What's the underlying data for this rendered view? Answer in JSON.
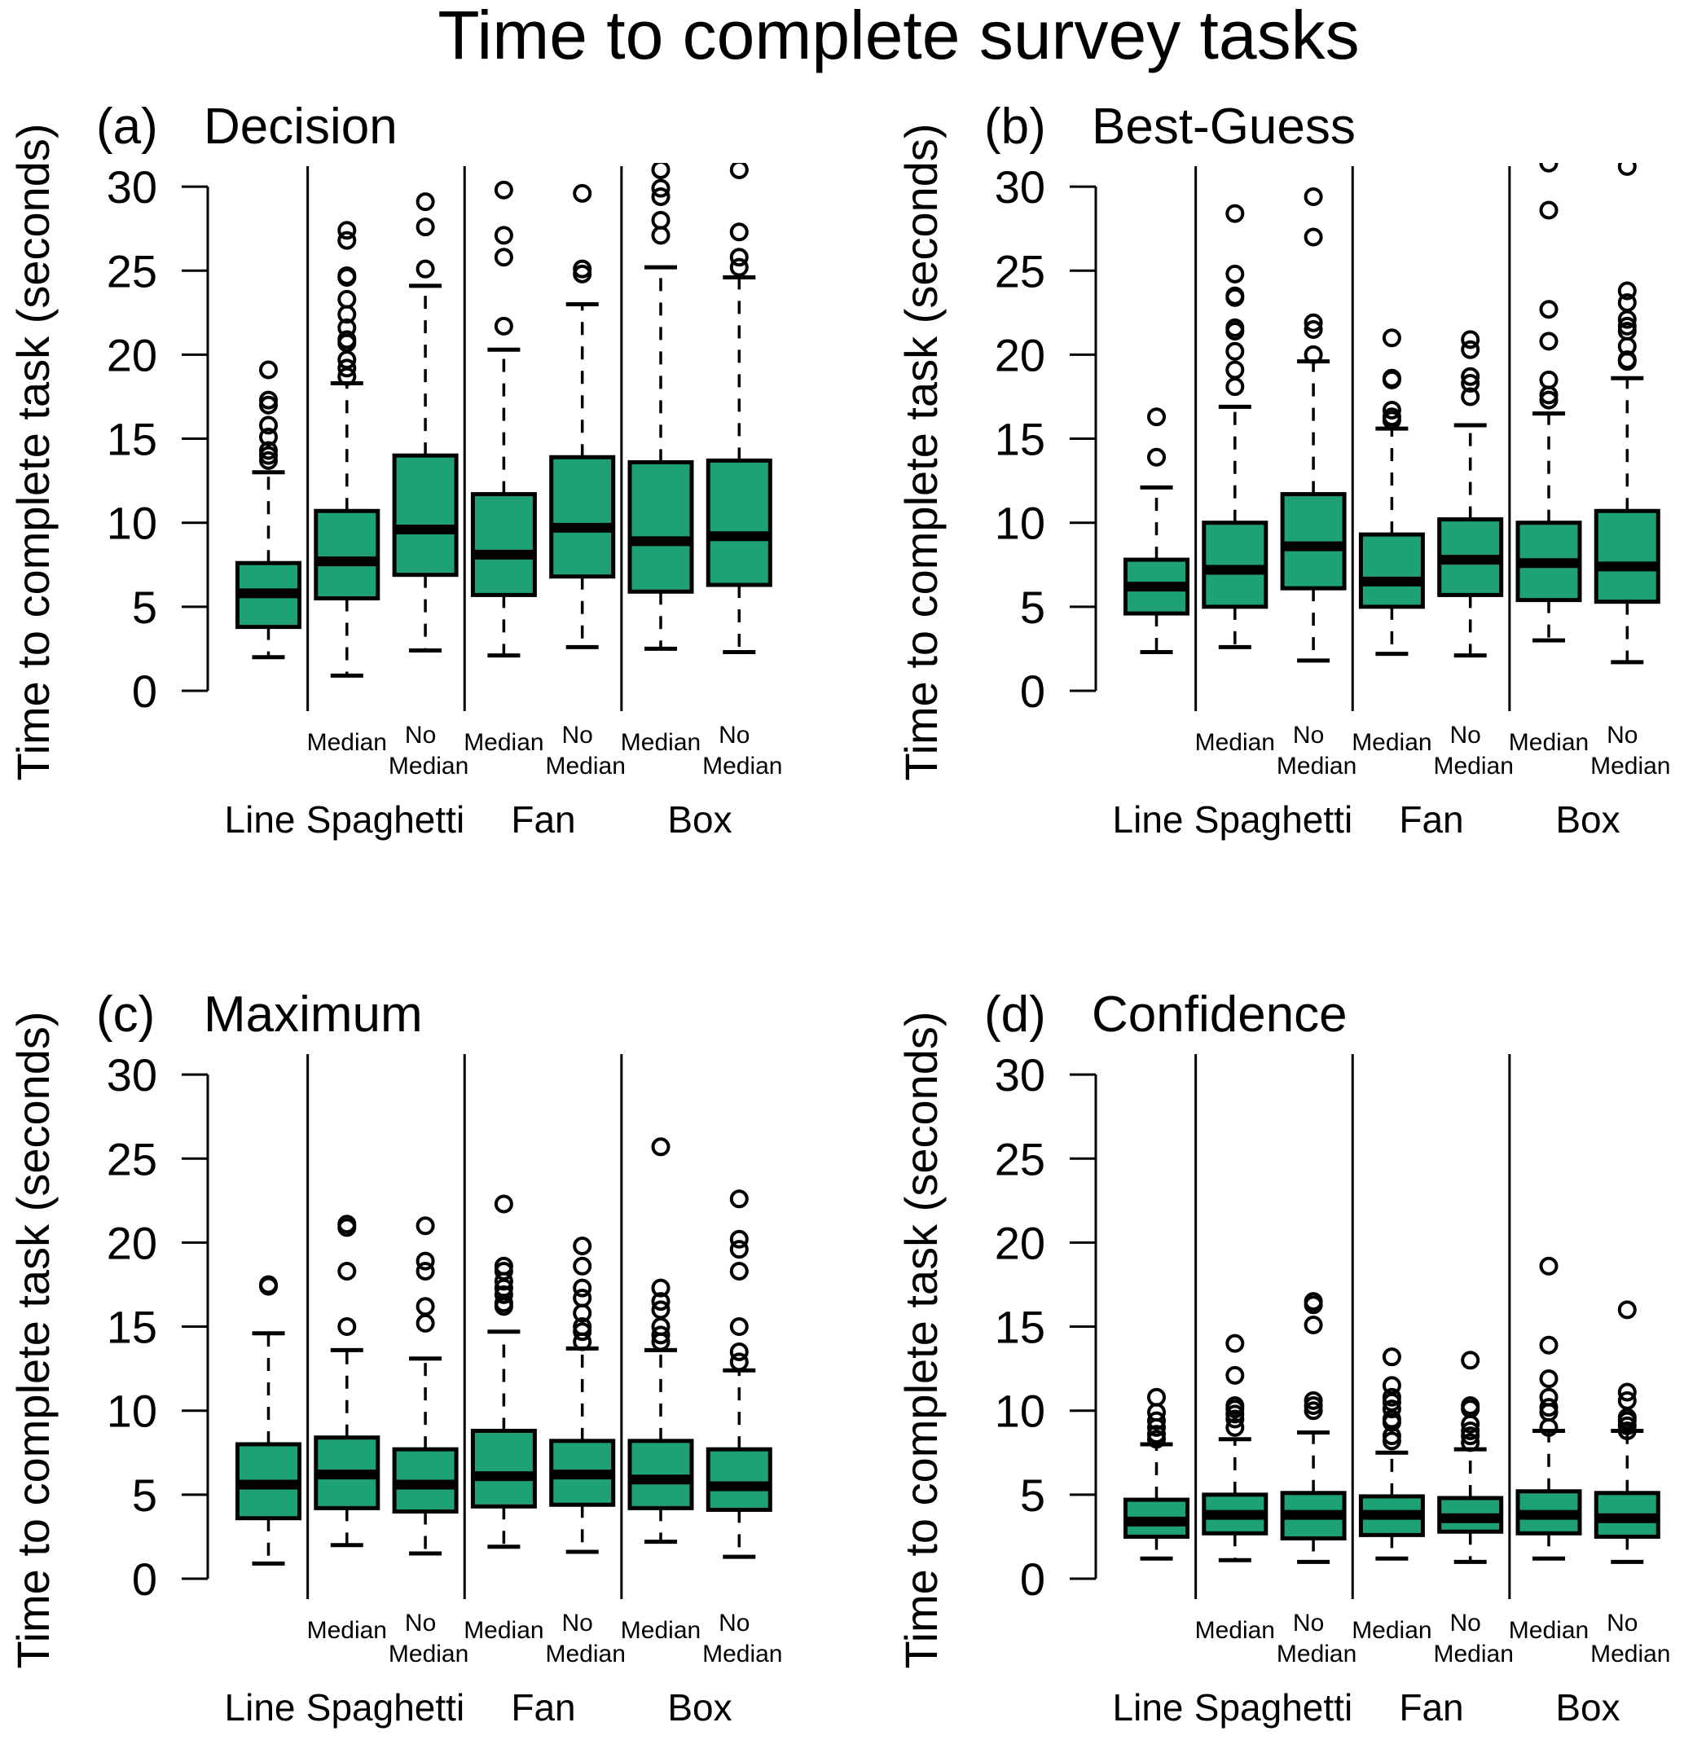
{
  "chart_data": {
    "type": "boxplot",
    "title": "Time to complete survey tasks",
    "ylabel": "Time to complete task (seconds)",
    "ylim": [
      0,
      30
    ],
    "yticks": [
      0,
      5,
      10,
      15,
      20,
      25,
      30
    ],
    "box_color": "#1fa178",
    "categories": [
      "Line",
      "Spaghetti",
      "Fan",
      "Box"
    ],
    "series_labels": [
      {
        "group": "Line",
        "sub": ""
      },
      {
        "group": "Spaghetti",
        "sub": "Median"
      },
      {
        "group": "Spaghetti",
        "sub": "No Median"
      },
      {
        "group": "Fan",
        "sub": "Median"
      },
      {
        "group": "Fan",
        "sub": "No Median"
      },
      {
        "group": "Box",
        "sub": "Median"
      },
      {
        "group": "Box",
        "sub": "No Median"
      }
    ],
    "sub_label_lines": {
      "Median": [
        "Median"
      ],
      "No Median": [
        "No",
        "Median"
      ]
    },
    "panels": [
      {
        "tag": "(a)",
        "title": "Decision",
        "boxes": [
          {
            "low": 2.0,
            "q1": 3.8,
            "median": 5.8,
            "q3": 7.6,
            "high": 13.0,
            "outliers": [
              13.7,
              14.0,
              14.3,
              15.1,
              15.8,
              17.0,
              17.3,
              19.1
            ]
          },
          {
            "low": 0.9,
            "q1": 5.5,
            "median": 7.7,
            "q3": 10.7,
            "high": 18.3,
            "outliers": [
              18.7,
              19.2,
              19.7,
              20.7,
              20.9,
              21.6,
              22.4,
              23.3,
              24.6,
              24.7,
              26.8,
              27.4
            ]
          },
          {
            "low": 2.4,
            "q1": 6.9,
            "median": 9.6,
            "q3": 14.0,
            "high": 24.1,
            "outliers": [
              25.1,
              27.6,
              29.1
            ]
          },
          {
            "low": 2.1,
            "q1": 5.7,
            "median": 8.1,
            "q3": 11.7,
            "high": 20.3,
            "outliers": [
              21.7,
              25.8,
              27.1,
              29.8
            ]
          },
          {
            "low": 2.6,
            "q1": 6.8,
            "median": 9.7,
            "q3": 13.9,
            "high": 23.0,
            "outliers": [
              24.8,
              25.1,
              29.6
            ]
          },
          {
            "low": 2.5,
            "q1": 5.9,
            "median": 8.9,
            "q3": 13.6,
            "high": 25.2,
            "outliers": [
              27.1,
              28.0,
              29.4,
              29.9,
              31.0
            ]
          },
          {
            "low": 2.3,
            "q1": 6.3,
            "median": 9.2,
            "q3": 13.7,
            "high": 24.6,
            "outliers": [
              25.2,
              25.8,
              27.3,
              31.0
            ]
          }
        ]
      },
      {
        "tag": "(b)",
        "title": "Best-Guess",
        "boxes": [
          {
            "low": 2.3,
            "q1": 4.6,
            "median": 6.2,
            "q3": 7.8,
            "high": 12.1,
            "outliers": [
              13.9,
              16.3
            ]
          },
          {
            "low": 2.6,
            "q1": 5.0,
            "median": 7.2,
            "q3": 10.0,
            "high": 16.9,
            "outliers": [
              18.1,
              19.1,
              20.2,
              21.4,
              21.6,
              23.4,
              23.5,
              24.8,
              28.4
            ]
          },
          {
            "low": 1.8,
            "q1": 6.1,
            "median": 8.6,
            "q3": 11.7,
            "high": 19.6,
            "outliers": [
              20.0,
              21.5,
              21.9,
              27.0,
              29.4
            ]
          },
          {
            "low": 2.2,
            "q1": 5.0,
            "median": 6.5,
            "q3": 9.3,
            "high": 15.6,
            "outliers": [
              16.1,
              16.3,
              16.7,
              18.5,
              18.6,
              21.0
            ]
          },
          {
            "low": 2.1,
            "q1": 5.7,
            "median": 7.8,
            "q3": 10.2,
            "high": 15.8,
            "outliers": [
              17.5,
              18.3,
              18.7,
              20.3,
              20.9
            ]
          },
          {
            "low": 3.0,
            "q1": 5.4,
            "median": 7.6,
            "q3": 10.0,
            "high": 16.5,
            "outliers": [
              17.3,
              17.6,
              18.5,
              20.8,
              22.7,
              28.6,
              31.4
            ]
          },
          {
            "low": 1.7,
            "q1": 5.3,
            "median": 7.4,
            "q3": 10.7,
            "high": 18.6,
            "outliers": [
              19.6,
              19.7,
              20.5,
              21.4,
              21.7,
              22.1,
              23.1,
              23.8,
              31.2
            ]
          }
        ]
      },
      {
        "tag": "(c)",
        "title": "Maximum",
        "boxes": [
          {
            "low": 0.9,
            "q1": 3.6,
            "median": 5.6,
            "q3": 8.0,
            "high": 14.6,
            "outliers": [
              17.4,
              17.5
            ]
          },
          {
            "low": 2.0,
            "q1": 4.2,
            "median": 6.2,
            "q3": 8.4,
            "high": 13.6,
            "outliers": [
              15.0,
              18.3,
              20.9,
              21.1
            ]
          },
          {
            "low": 1.5,
            "q1": 4.0,
            "median": 5.6,
            "q3": 7.7,
            "high": 13.1,
            "outliers": [
              15.2,
              16.2,
              18.3,
              18.9,
              21.0
            ]
          },
          {
            "low": 1.9,
            "q1": 4.3,
            "median": 6.1,
            "q3": 8.8,
            "high": 14.7,
            "outliers": [
              16.2,
              16.4,
              16.9,
              17.3,
              17.7,
              18.3,
              18.6,
              22.3
            ]
          },
          {
            "low": 1.6,
            "q1": 4.4,
            "median": 6.2,
            "q3": 8.2,
            "high": 13.7,
            "outliers": [
              14.1,
              14.7,
              15.0,
              15.8,
              16.7,
              17.3,
              18.6,
              19.8
            ]
          },
          {
            "low": 2.2,
            "q1": 4.2,
            "median": 5.9,
            "q3": 8.2,
            "high": 13.6,
            "outliers": [
              14.1,
              14.5,
              15.0,
              16.0,
              16.5,
              17.3,
              25.7
            ]
          },
          {
            "low": 1.3,
            "q1": 4.1,
            "median": 5.5,
            "q3": 7.7,
            "high": 12.4,
            "outliers": [
              12.9,
              13.5,
              15.0,
              18.3,
              19.6,
              20.2,
              22.6
            ]
          }
        ]
      },
      {
        "tag": "(d)",
        "title": "Confidence",
        "boxes": [
          {
            "low": 1.2,
            "q1": 2.5,
            "median": 3.4,
            "q3": 4.7,
            "high": 8.0,
            "outliers": [
              8.3,
              8.6,
              9.0,
              9.4,
              9.9,
              10.8
            ]
          },
          {
            "low": 1.1,
            "q1": 2.7,
            "median": 3.8,
            "q3": 5.0,
            "high": 8.3,
            "outliers": [
              9.0,
              9.5,
              9.8,
              10.1,
              10.3,
              12.1,
              14.0
            ]
          },
          {
            "low": 1.0,
            "q1": 2.4,
            "median": 3.8,
            "q3": 5.1,
            "high": 8.7,
            "outliers": [
              10.0,
              10.3,
              10.6,
              15.1,
              16.3,
              16.5
            ]
          },
          {
            "low": 1.2,
            "q1": 2.6,
            "median": 3.8,
            "q3": 4.9,
            "high": 7.5,
            "outliers": [
              8.2,
              8.5,
              9.3,
              9.5,
              10.1,
              10.5,
              10.8,
              11.5,
              13.2
            ]
          },
          {
            "low": 1.0,
            "q1": 2.8,
            "median": 3.6,
            "q3": 4.8,
            "high": 7.7,
            "outliers": [
              8.1,
              8.5,
              8.8,
              9.2,
              10.1,
              10.3,
              13.0
            ]
          },
          {
            "low": 1.2,
            "q1": 2.7,
            "median": 3.8,
            "q3": 5.2,
            "high": 8.8,
            "outliers": [
              9.0,
              9.9,
              10.2,
              10.8,
              11.9,
              13.9,
              18.6
            ]
          },
          {
            "low": 1.0,
            "q1": 2.5,
            "median": 3.6,
            "q3": 5.1,
            "high": 8.8,
            "outliers": [
              8.8,
              9.1,
              9.4,
              9.6,
              10.6,
              11.1,
              16.0
            ]
          }
        ]
      }
    ]
  }
}
